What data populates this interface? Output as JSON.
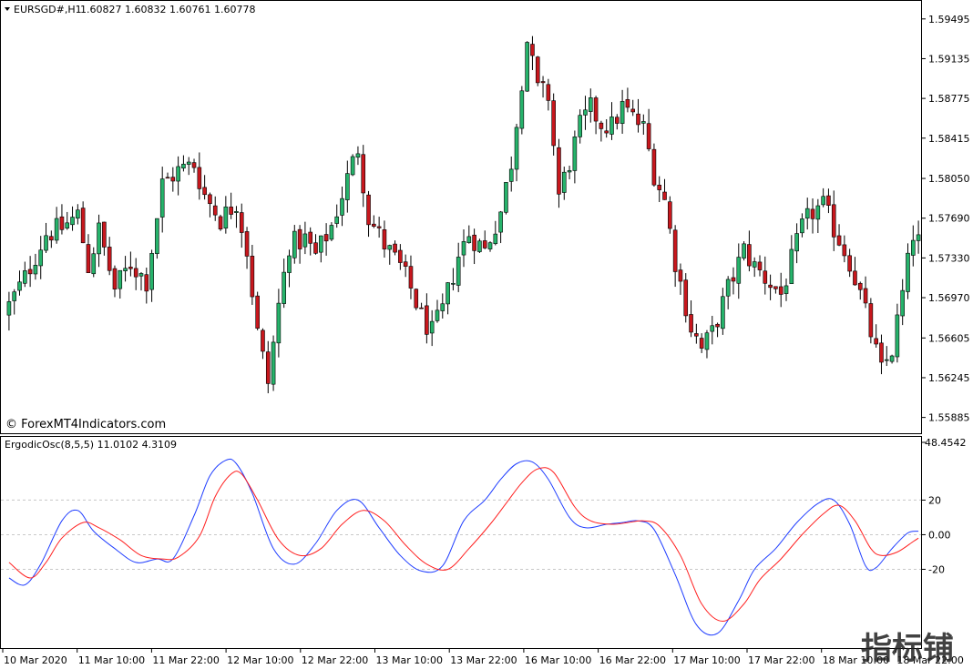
{
  "header": {
    "symbol": "EURSGD#,H1",
    "ohlc": "1.60827 1.60832 1.60761 1.60778"
  },
  "watermark": "© ForexMT4Indicators.com",
  "indicator": {
    "label": "ErgodicOsc(8,5,5) 11.0102 4.3109"
  },
  "corner_logo": "指标铺",
  "colors": {
    "bull": "#26b36b",
    "bear": "#c8171d",
    "signal_blue": "#1f3dff",
    "signal_red": "#ff2020",
    "frame": "#000000",
    "grid": "#c8c8c8"
  },
  "chart_data": [
    {
      "type": "candlestick",
      "symbol": "EURSGD#",
      "timeframe": "H1",
      "ylim": [
        1.5575,
        1.5965
      ],
      "y_ticks": [
        "1.59495",
        "1.59135",
        "1.58775",
        "1.58415",
        "1.58050",
        "1.57690",
        "1.57330",
        "1.56970",
        "1.56605",
        "1.56245",
        "1.55885"
      ],
      "x_ticks": [
        "10 Mar 2020",
        "11 Mar 10:00",
        "11 Mar 22:00",
        "12 Mar 10:00",
        "12 Mar 22:00",
        "13 Mar 10:00",
        "13 Mar 22:00",
        "16 Mar 10:00",
        "16 Mar 22:00",
        "17 Mar 10:00",
        "17 Mar 22:00",
        "18 Mar 10:00",
        "18 Mar 22:00"
      ],
      "close_path": [
        [
          0,
          1.569
        ],
        [
          3,
          1.5715
        ],
        [
          7,
          1.5755
        ],
        [
          10,
          1.576
        ],
        [
          13,
          1.5772
        ],
        [
          15,
          1.5725
        ],
        [
          17,
          1.5758
        ],
        [
          20,
          1.5705
        ],
        [
          23,
          1.5728
        ],
        [
          26,
          1.5712
        ],
        [
          29,
          1.58
        ],
        [
          32,
          1.5812
        ],
        [
          35,
          1.5818
        ],
        [
          37,
          1.579
        ],
        [
          40,
          1.5768
        ],
        [
          43,
          1.5784
        ],
        [
          45,
          1.574
        ],
        [
          47,
          1.5665
        ],
        [
          49,
          1.562
        ],
        [
          51,
          1.569
        ],
        [
          53,
          1.5745
        ],
        [
          56,
          1.575
        ],
        [
          58,
          1.5735
        ],
        [
          61,
          1.5762
        ],
        [
          64,
          1.5805
        ],
        [
          66,
          1.5833
        ],
        [
          68,
          1.577
        ],
        [
          71,
          1.5745
        ],
        [
          74,
          1.5725
        ],
        [
          76,
          1.5705
        ],
        [
          78,
          1.568
        ],
        [
          80,
          1.5665
        ],
        [
          82,
          1.5685
        ],
        [
          85,
          1.5735
        ],
        [
          87,
          1.5755
        ],
        [
          90,
          1.574
        ],
        [
          93,
          1.5775
        ],
        [
          95,
          1.582
        ],
        [
          97,
          1.5895
        ],
        [
          98,
          1.593
        ],
        [
          100,
          1.5885
        ],
        [
          102,
          1.588
        ],
        [
          104,
          1.579
        ],
        [
          106,
          1.582
        ],
        [
          108,
          1.5852
        ],
        [
          110,
          1.5868
        ],
        [
          112,
          1.5855
        ],
        [
          114,
          1.5852
        ],
        [
          116,
          1.587
        ],
        [
          118,
          1.586
        ],
        [
          120,
          1.585
        ],
        [
          122,
          1.581
        ],
        [
          124,
          1.5785
        ],
        [
          126,
          1.573
        ],
        [
          129,
          1.567
        ],
        [
          131,
          1.565
        ],
        [
          133,
          1.5665
        ],
        [
          136,
          1.5705
        ],
        [
          139,
          1.574
        ],
        [
          141,
          1.5725
        ],
        [
          144,
          1.571
        ],
        [
          146,
          1.57
        ],
        [
          148,
          1.573
        ],
        [
          150,
          1.576
        ],
        [
          152,
          1.5775
        ],
        [
          154,
          1.578
        ],
        [
          157,
          1.575
        ],
        [
          159,
          1.573
        ],
        [
          161,
          1.57
        ],
        [
          163,
          1.5665
        ],
        [
          165,
          1.563
        ],
        [
          167,
          1.565
        ],
        [
          169,
          1.57
        ],
        [
          171,
          1.5755
        ],
        [
          173,
          1.574
        ]
      ]
    },
    {
      "type": "line",
      "name": "ErgodicOsc(8,5,5)",
      "ylim": [
        -65,
        56
      ],
      "y_ticks": [
        "48.4542",
        "20",
        "0.00",
        "-20"
      ],
      "x_count": 173,
      "series": [
        {
          "color": "blue",
          "points": [
            [
              0,
              -25
            ],
            [
              3,
              -29
            ],
            [
              6,
              -17
            ],
            [
              10,
              8
            ],
            [
              13,
              14
            ],
            [
              16,
              2
            ],
            [
              20,
              -8
            ],
            [
              24,
              -16
            ],
            [
              28,
              -14
            ],
            [
              31,
              -14
            ],
            [
              35,
              11
            ],
            [
              38,
              34
            ],
            [
              41,
              43
            ],
            [
              43,
              41
            ],
            [
              46,
              24
            ],
            [
              50,
              -8
            ],
            [
              54,
              -17
            ],
            [
              58,
              -5
            ],
            [
              62,
              14
            ],
            [
              66,
              20
            ],
            [
              70,
              4
            ],
            [
              74,
              -12
            ],
            [
              78,
              -21
            ],
            [
              82,
              -18
            ],
            [
              86,
              8
            ],
            [
              90,
              20
            ],
            [
              93,
              32
            ],
            [
              96,
              41
            ],
            [
              99,
              42
            ],
            [
              102,
              32
            ],
            [
              106,
              10
            ],
            [
              109,
              4
            ],
            [
              113,
              6
            ],
            [
              116,
              7
            ],
            [
              119,
              8
            ],
            [
              122,
              3
            ],
            [
              126,
              -23
            ],
            [
              130,
              -52
            ],
            [
              134,
              -57
            ],
            [
              138,
              -38
            ],
            [
              141,
              -20
            ],
            [
              145,
              -8
            ],
            [
              149,
              7
            ],
            [
              153,
              18
            ],
            [
              156,
              20
            ],
            [
              159,
              6
            ],
            [
              162,
              -18
            ],
            [
              164,
              -19
            ],
            [
              167,
              -8
            ],
            [
              170,
              1
            ],
            [
              172,
              2
            ]
          ]
        },
        {
          "color": "red",
          "points": [
            [
              0,
              -16
            ],
            [
              4,
              -25
            ],
            [
              7,
              -16
            ],
            [
              10,
              -2
            ],
            [
              14,
              7
            ],
            [
              17,
              4
            ],
            [
              21,
              -3
            ],
            [
              25,
              -12
            ],
            [
              29,
              -14
            ],
            [
              32,
              -13
            ],
            [
              36,
              -1
            ],
            [
              39,
              22
            ],
            [
              42,
              35
            ],
            [
              44,
              35
            ],
            [
              47,
              20
            ],
            [
              51,
              -3
            ],
            [
              55,
              -12
            ],
            [
              59,
              -8
            ],
            [
              63,
              6
            ],
            [
              67,
              14
            ],
            [
              71,
              8
            ],
            [
              75,
              -6
            ],
            [
              79,
              -17
            ],
            [
              83,
              -20
            ],
            [
              87,
              -8
            ],
            [
              91,
              6
            ],
            [
              94,
              18
            ],
            [
              97,
              30
            ],
            [
              100,
              38
            ],
            [
              103,
              36
            ],
            [
              107,
              16
            ],
            [
              110,
              8
            ],
            [
              114,
              6
            ],
            [
              117,
              7
            ],
            [
              120,
              8
            ],
            [
              123,
              5
            ],
            [
              127,
              -12
            ],
            [
              131,
              -40
            ],
            [
              135,
              -50
            ],
            [
              139,
              -40
            ],
            [
              142,
              -26
            ],
            [
              146,
              -14
            ],
            [
              150,
              0
            ],
            [
              154,
              12
            ],
            [
              157,
              17
            ],
            [
              160,
              8
            ],
            [
              163,
              -8
            ],
            [
              165,
              -12
            ],
            [
              168,
              -10
            ],
            [
              171,
              -4
            ],
            [
              172,
              -2
            ]
          ]
        }
      ]
    }
  ]
}
